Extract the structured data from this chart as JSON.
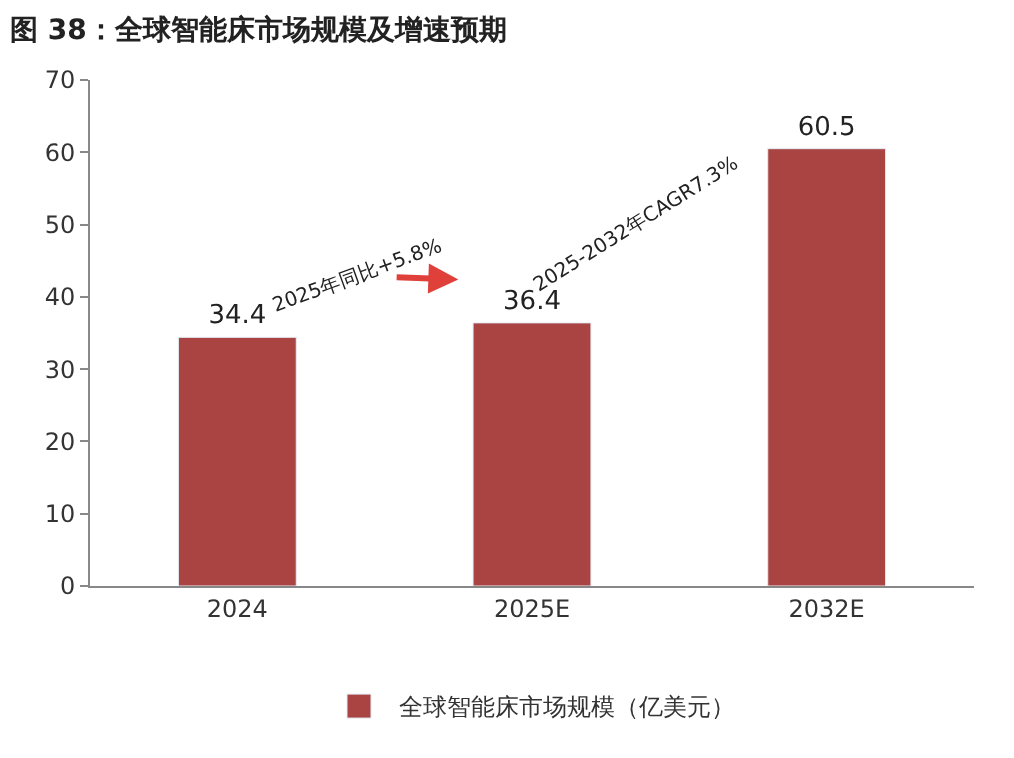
{
  "chart_data": {
    "type": "bar",
    "title": "图 38：全球智能床市场规模及增速预期",
    "categories": [
      "2024",
      "2025E",
      "2032E"
    ],
    "series": [
      {
        "name": "全球智能床市场规模（亿美元）",
        "color": "#a94442",
        "values": [
          34.4,
          36.4,
          60.5
        ]
      }
    ],
    "ylim": [
      0,
      70
    ],
    "yticks": [
      0,
      10,
      20,
      30,
      40,
      50,
      60,
      70
    ],
    "data_labels": true,
    "legend": "bottom",
    "annotations": [
      "2025年同比+5.8%",
      "2025-2032年CAGR7.3%"
    ]
  }
}
